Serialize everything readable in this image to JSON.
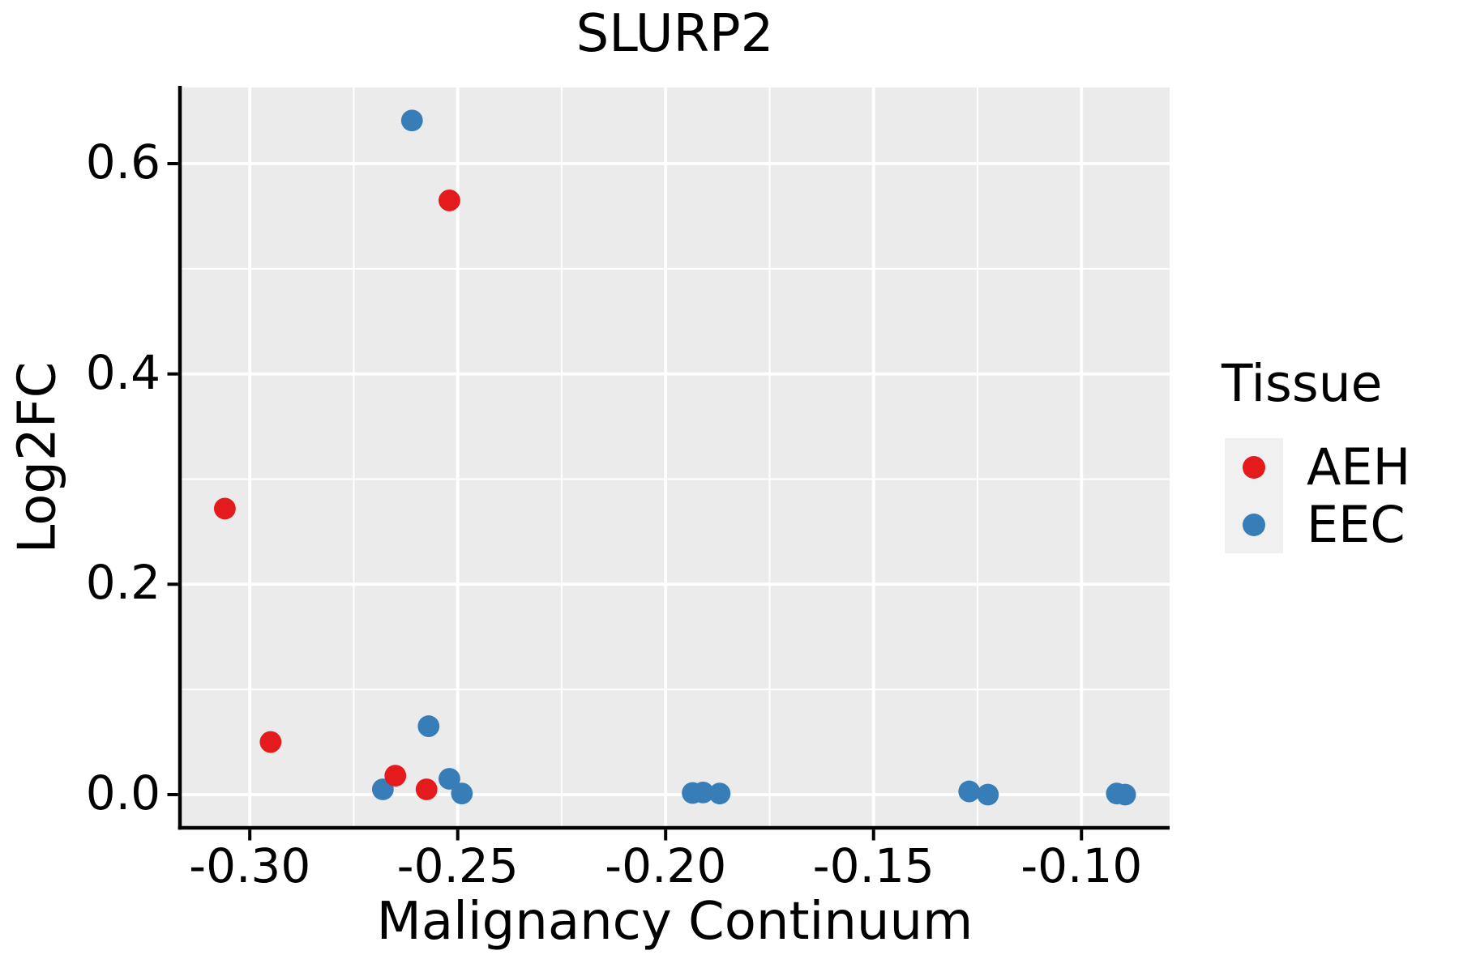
{
  "chart_data": {
    "type": "scatter",
    "title": "SLURP2",
    "xlabel": "Malignancy Continuum",
    "ylabel": "Log2FC",
    "xlim": [
      -0.3168,
      -0.0788
    ],
    "ylim": [
      -0.0316,
      0.6724
    ],
    "x_ticks": [
      -0.3,
      -0.25,
      -0.2,
      -0.15,
      -0.1
    ],
    "x_tick_labels": [
      "-0.30",
      "-0.25",
      "-0.20",
      "-0.15",
      "-0.10"
    ],
    "x_minor_ticks": [
      -0.275,
      -0.225,
      -0.175,
      -0.125
    ],
    "y_ticks": [
      0.0,
      0.2,
      0.4,
      0.6
    ],
    "y_tick_labels": [
      "0.0",
      "0.2",
      "0.4",
      "0.6"
    ],
    "y_minor_ticks": [
      0.1,
      0.3,
      0.5
    ],
    "grid": true,
    "panel_color": "#EBEBEB",
    "grid_color": "#FFFFFF",
    "axis_color": "#000000",
    "legend": {
      "title": "Tissue",
      "position": "right",
      "entries": [
        {
          "label": "AEH",
          "color": "#E41A1C"
        },
        {
          "label": "EEC",
          "color": "#377EB8"
        }
      ]
    },
    "series": [
      {
        "name": "EEC",
        "color": "#377EB8",
        "points": [
          [
            -0.261,
            0.641
          ],
          [
            -0.268,
            0.005
          ],
          [
            -0.257,
            0.065
          ],
          [
            -0.252,
            0.015
          ],
          [
            -0.249,
            0.001
          ],
          [
            -0.1935,
            0.0015
          ],
          [
            -0.191,
            0.002
          ],
          [
            -0.187,
            0.001
          ],
          [
            -0.127,
            0.003
          ],
          [
            -0.1225,
            0.0
          ],
          [
            -0.0915,
            0.001
          ],
          [
            -0.0895,
            0.0
          ]
        ]
      },
      {
        "name": "AEH",
        "color": "#E41A1C",
        "points": [
          [
            -0.306,
            0.272
          ],
          [
            -0.295,
            0.05
          ],
          [
            -0.265,
            0.018
          ],
          [
            -0.2575,
            0.005
          ],
          [
            -0.252,
            0.565
          ]
        ]
      }
    ]
  }
}
